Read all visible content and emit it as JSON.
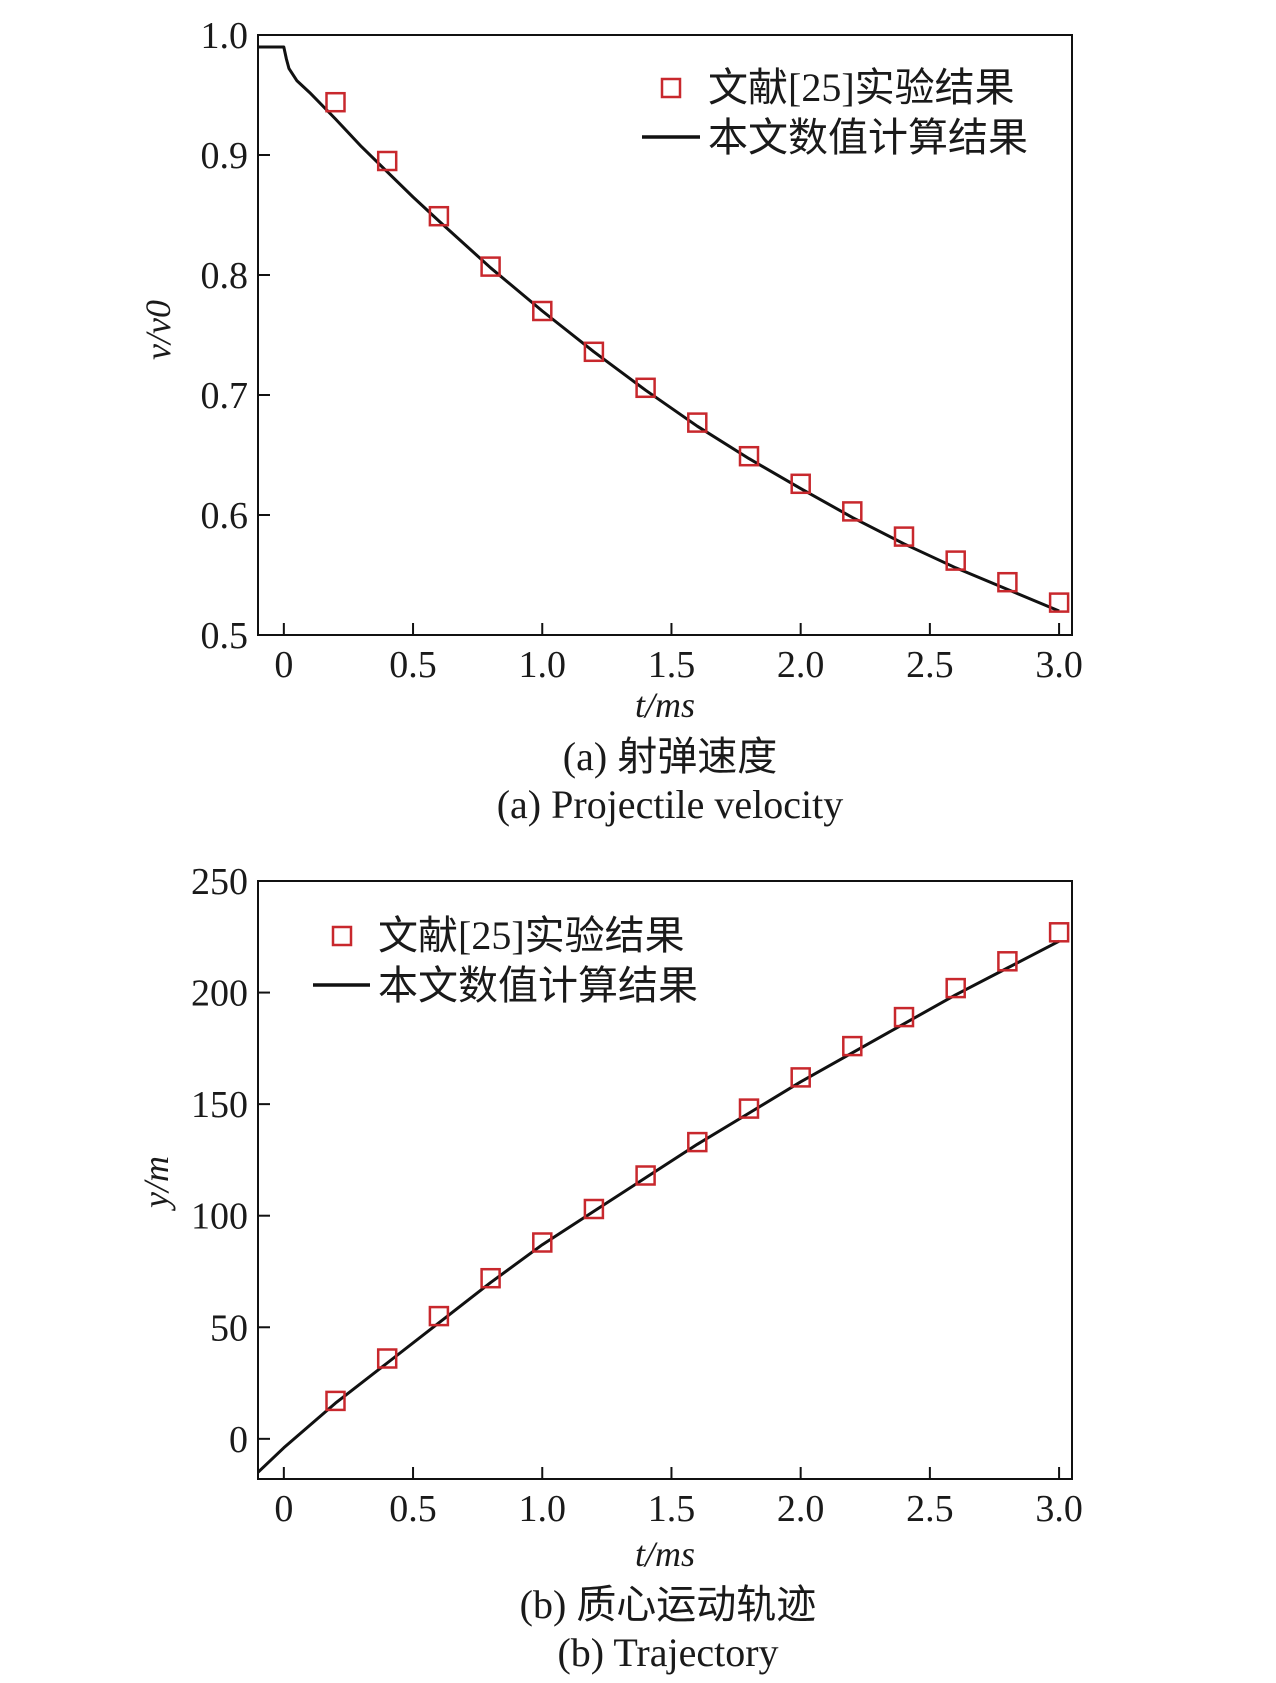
{
  "chart_data": [
    {
      "id": "a",
      "type": "scatter",
      "xlabel": "t/ms",
      "ylabel": "v/v0",
      "xlim": [
        -0.1,
        3.05
      ],
      "ylim": [
        0.5,
        1.0
      ],
      "x_ticks": [
        "0",
        "0.5",
        "1.0",
        "1.5",
        "2.0",
        "2.5",
        "3.0"
      ],
      "x_tick_values": [
        0,
        0.5,
        1.0,
        1.5,
        2.0,
        2.5,
        3.0
      ],
      "y_ticks": [
        "0.5",
        "0.6",
        "0.7",
        "0.8",
        "0.9",
        "1.0"
      ],
      "y_tick_values": [
        0.5,
        0.6,
        0.7,
        0.8,
        0.9,
        1.0
      ],
      "legend_position": "top-right",
      "series": [
        {
          "name": "文献[25]实验结果",
          "marker": "square",
          "color": "#c8282d",
          "x": [
            0.2,
            0.4,
            0.6,
            0.8,
            1.0,
            1.2,
            1.4,
            1.6,
            1.8,
            2.0,
            2.2,
            2.4,
            2.6,
            2.8,
            3.0
          ],
          "y": [
            0.944,
            0.895,
            0.849,
            0.807,
            0.77,
            0.736,
            0.706,
            0.677,
            0.649,
            0.626,
            0.603,
            0.582,
            0.562,
            0.544,
            0.527
          ]
        },
        {
          "name": "本文数值计算结果",
          "style": "line",
          "color": "#111111",
          "x": [
            -0.1,
            -0.02,
            0.0,
            0.01,
            0.02,
            0.05,
            0.1,
            0.2,
            0.3,
            0.4,
            0.5,
            0.6,
            0.8,
            1.0,
            1.2,
            1.4,
            1.6,
            1.8,
            2.0,
            2.2,
            2.4,
            2.6,
            2.8,
            3.0
          ],
          "y": [
            0.99,
            0.99,
            0.99,
            0.98,
            0.972,
            0.962,
            0.952,
            0.93,
            0.907,
            0.886,
            0.865,
            0.845,
            0.806,
            0.77,
            0.736,
            0.704,
            0.674,
            0.647,
            0.622,
            0.598,
            0.576,
            0.556,
            0.538,
            0.52
          ]
        }
      ],
      "caption_cn": "(a) 射弹速度",
      "caption_en": "(a) Projectile velocity"
    },
    {
      "id": "b",
      "type": "scatter",
      "xlabel": "t/ms",
      "ylabel": "y/m",
      "xlim": [
        -0.1,
        3.05
      ],
      "ylim": [
        -18,
        250
      ],
      "x_ticks": [
        "0",
        "0.5",
        "1.0",
        "1.5",
        "2.0",
        "2.5",
        "3.0"
      ],
      "x_tick_values": [
        0,
        0.5,
        1.0,
        1.5,
        2.0,
        2.5,
        3.0
      ],
      "y_ticks": [
        "0",
        "50",
        "100",
        "150",
        "200",
        "250"
      ],
      "y_tick_values": [
        0,
        50,
        100,
        150,
        200,
        250
      ],
      "legend_position": "top-left",
      "series": [
        {
          "name": "文献[25]实验结果",
          "marker": "square",
          "color": "#c8282d",
          "x": [
            0.2,
            0.4,
            0.6,
            0.8,
            1.0,
            1.2,
            1.4,
            1.6,
            1.8,
            2.0,
            2.2,
            2.4,
            2.6,
            2.8,
            3.0
          ],
          "y": [
            17,
            36,
            55,
            72,
            88,
            103,
            118,
            133,
            148,
            162,
            176,
            189,
            202,
            214,
            227
          ]
        },
        {
          "name": "本文数值计算结果",
          "style": "line",
          "color": "#111111",
          "x": [
            -0.1,
            0.0,
            0.2,
            0.4,
            0.6,
            0.8,
            1.0,
            1.2,
            1.4,
            1.6,
            1.8,
            2.0,
            2.2,
            2.4,
            2.6,
            2.8,
            3.0
          ],
          "y": [
            -15,
            -4,
            16,
            34,
            52,
            70,
            87,
            102,
            117,
            132,
            146,
            160,
            173,
            186,
            199,
            211,
            223
          ]
        }
      ],
      "caption_cn": "(b) 质心运动轨迹",
      "caption_en": "(b) Trajectory"
    }
  ]
}
